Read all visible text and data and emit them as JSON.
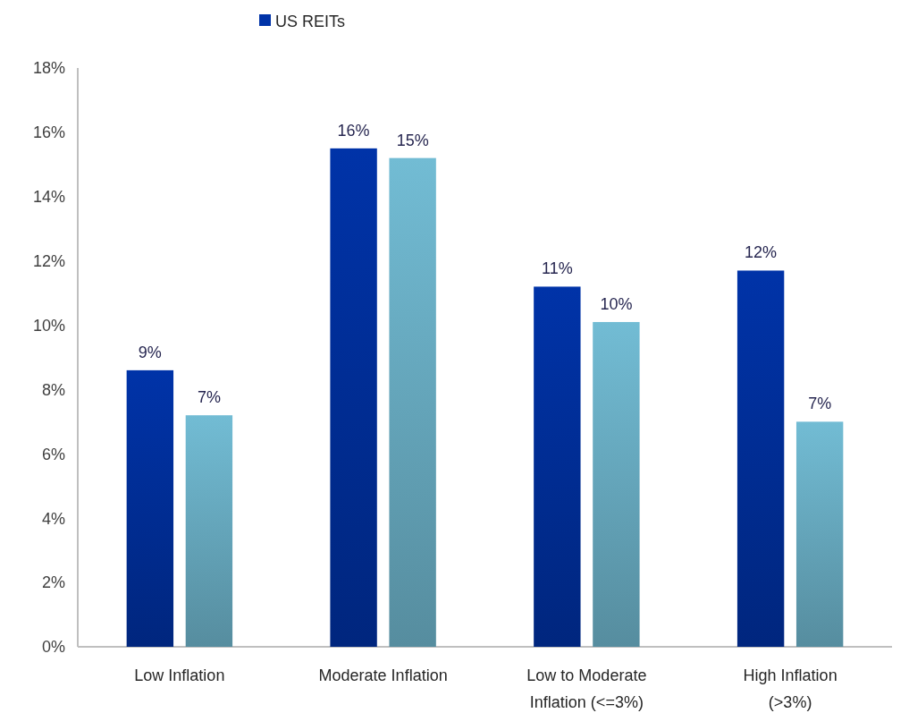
{
  "chart_data": {
    "type": "bar",
    "categories": [
      "Low Inflation",
      "Moderate Inflation",
      "Low to Moderate Inflation (<=3%)",
      "High Inflation (>3%)"
    ],
    "series": [
      {
        "name": "US REITs",
        "color": "#0033a8",
        "values": [
          8.6,
          15.5,
          11.2,
          11.7
        ],
        "value_labels": [
          "9%",
          "16%",
          "11%",
          "12%"
        ]
      },
      {
        "color": "#72bcd4",
        "values": [
          7.2,
          15.2,
          10.1,
          7.0
        ],
        "value_labels": [
          "7%",
          "15%",
          "10%",
          "7%"
        ]
      }
    ],
    "ylim": [
      0,
      18
    ],
    "yticks": [
      {
        "value": 0,
        "label": "0%"
      },
      {
        "value": 2,
        "label": "2%"
      },
      {
        "value": 4,
        "label": "4%"
      },
      {
        "value": 6,
        "label": "6%"
      },
      {
        "value": 8,
        "label": "8%"
      },
      {
        "value": 10,
        "label": "10%"
      },
      {
        "value": 12,
        "label": "12%"
      },
      {
        "value": 14,
        "label": "14%"
      },
      {
        "value": 16,
        "label": "16%"
      },
      {
        "value": 18,
        "label": "18%"
      }
    ],
    "grid": false,
    "legend": "top"
  }
}
